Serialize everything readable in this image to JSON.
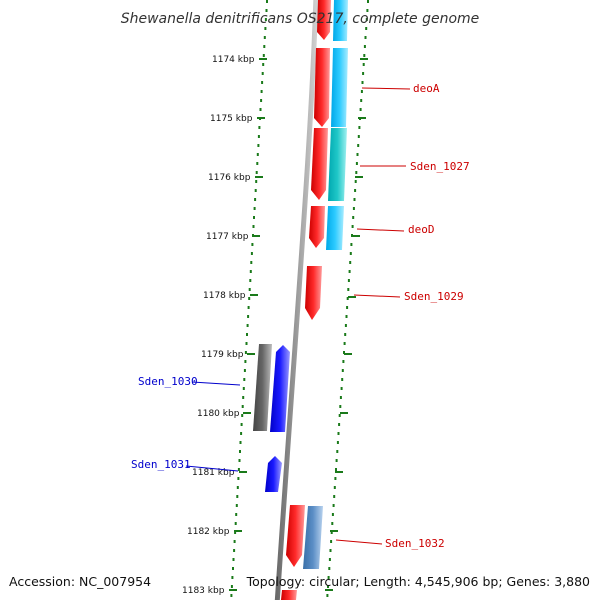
{
  "title": "Shewanella denitrificans OS217, complete genome",
  "footer": {
    "accession": "Accession: NC_007954",
    "summary": "Topology: circular; Length: 4,545,906 bp; Genes: 3,880"
  },
  "colors": {
    "backbone": "#8a8a8a",
    "tick": "#1a7a1a",
    "forward_gene": "#ff0000",
    "forward_cds": "#00bfff",
    "reverse_gene": "#0000ff",
    "reverse_cds": "#555555",
    "label_forward": "#cc0000",
    "label_reverse": "#0000cc"
  },
  "scale_labels": [
    "1174 kbp",
    "1175 kbp",
    "1176 kbp",
    "1177 kbp",
    "1178 kbp",
    "1179 kbp",
    "1180 kbp",
    "1181 kbp",
    "1182 kbp",
    "1183 kbp"
  ],
  "gene_labels": [
    {
      "text": "deoA",
      "strand": "forward"
    },
    {
      "text": "Sden_1027",
      "strand": "forward"
    },
    {
      "text": "deoD",
      "strand": "forward"
    },
    {
      "text": "Sden_1029",
      "strand": "forward"
    },
    {
      "text": "Sden_1030",
      "strand": "reverse"
    },
    {
      "text": "Sden_1031",
      "strand": "reverse"
    },
    {
      "text": "Sden_1032",
      "strand": "forward"
    }
  ]
}
